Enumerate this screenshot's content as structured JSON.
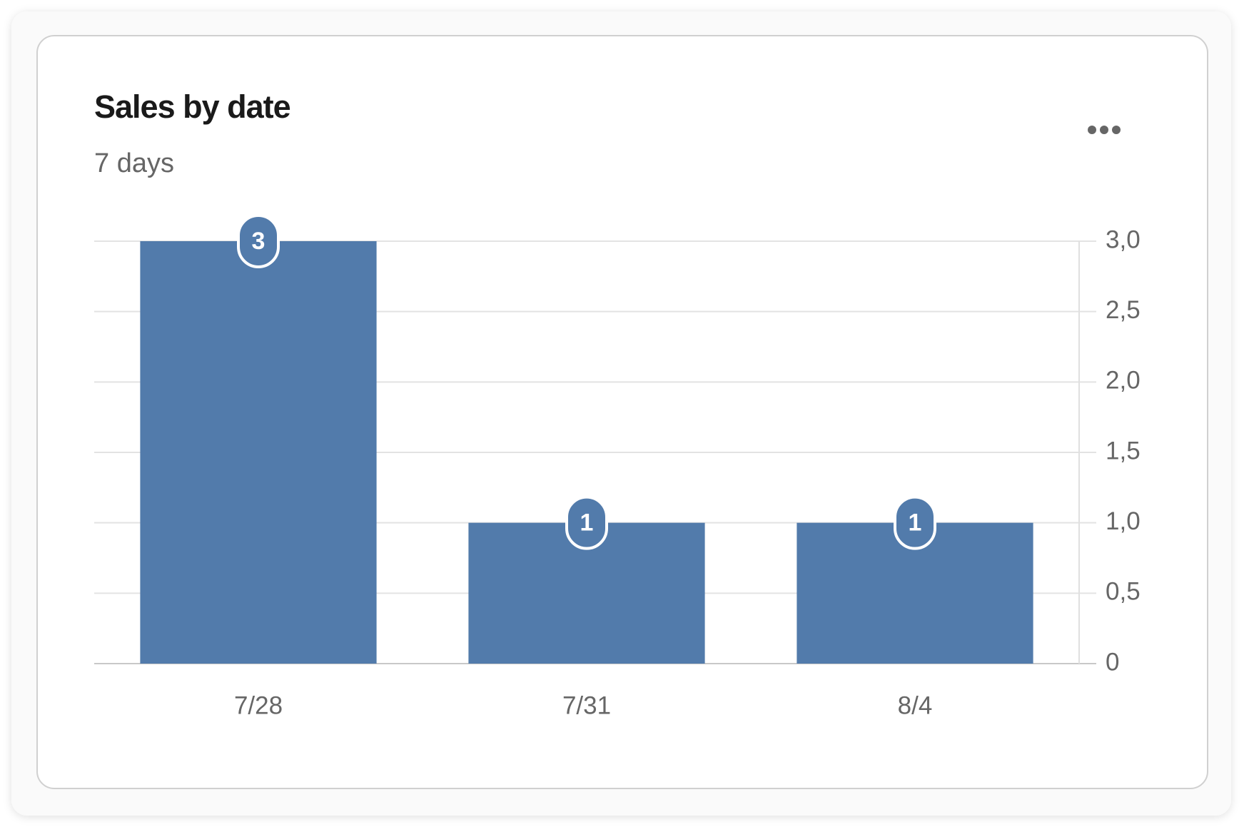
{
  "chart_data": {
    "type": "bar",
    "title": "Sales by date",
    "subtitle": "7 days",
    "categories": [
      "7/28",
      "7/31",
      "8/4"
    ],
    "values": [
      3,
      1,
      1
    ],
    "color": "#527bab",
    "ylim": [
      0,
      3
    ],
    "yticks": [
      0,
      {
        "value": 0.5,
        "label": "0,5"
      },
      {
        "value": 1,
        "label": "1,0"
      },
      {
        "value": 1.5,
        "label": "1,5"
      },
      {
        "value": 2,
        "label": "2,0"
      },
      {
        "value": 2.5,
        "label": "2,5"
      },
      {
        "value": 3,
        "label": "3,0"
      }
    ],
    "grid": true,
    "y_axis_side": "right"
  }
}
